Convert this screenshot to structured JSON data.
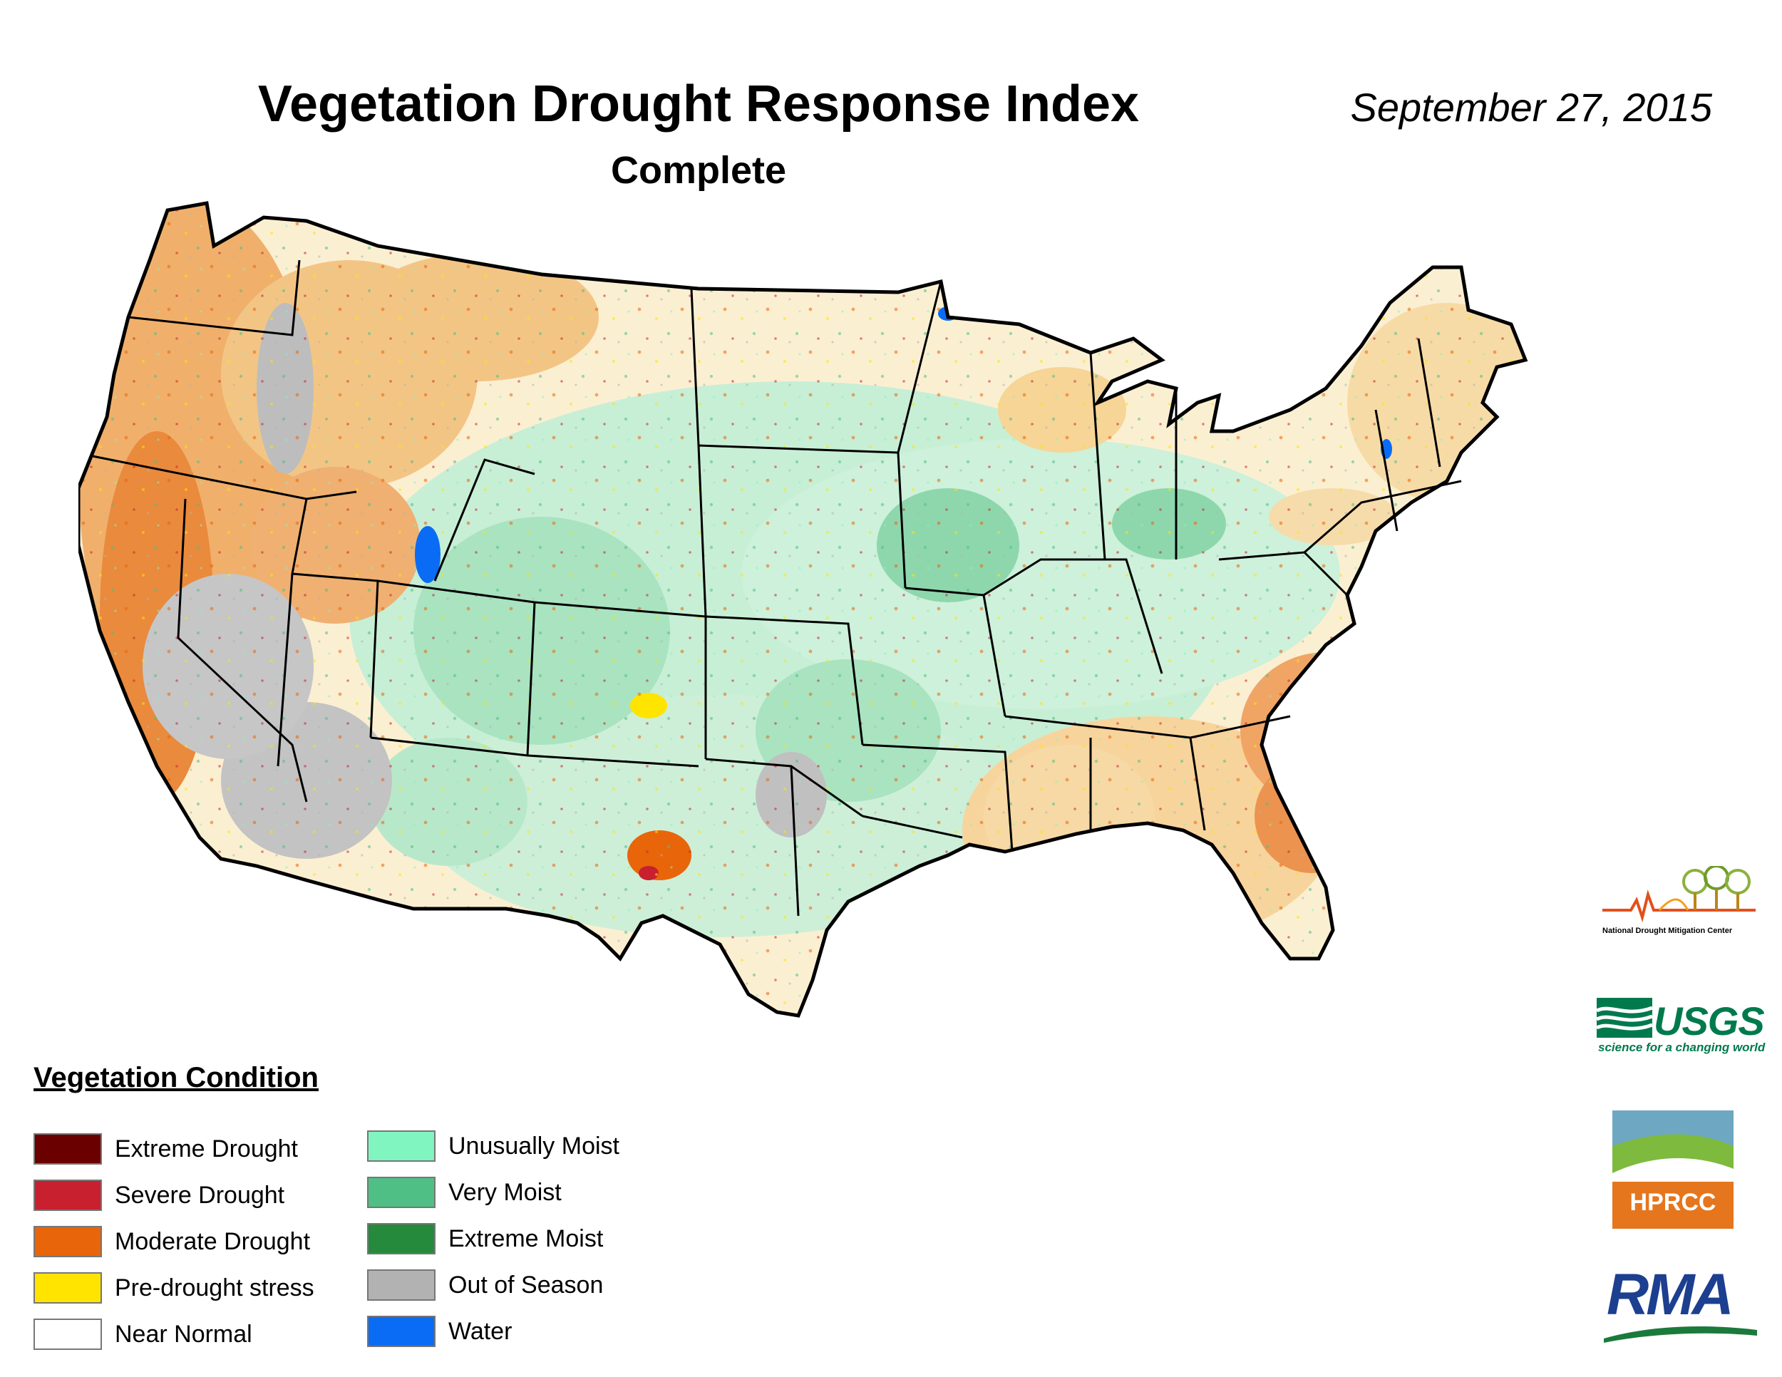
{
  "title": "Vegetation Drought Response Index",
  "subtitle": "Complete",
  "date": "September 27, 2015",
  "legend": {
    "title": "Vegetation Condition",
    "items": [
      {
        "label": "Extreme Drought",
        "color": "#6b0000"
      },
      {
        "label": "Severe Drought",
        "color": "#c8202e"
      },
      {
        "label": "Moderate Drought",
        "color": "#e8650a"
      },
      {
        "label": "Pre-drought stress",
        "color": "#ffe400"
      },
      {
        "label": "Near Normal",
        "color": "#ffffff"
      },
      {
        "label": "Unusually Moist",
        "color": "#80f5c0"
      },
      {
        "label": "Very Moist",
        "color": "#4fbf85"
      },
      {
        "label": "Extreme Moist",
        "color": "#258a3c"
      },
      {
        "label": "Out of Season",
        "color": "#b2b2b2"
      },
      {
        "label": "Water",
        "color": "#0a6cf5"
      }
    ]
  },
  "logos": {
    "ndmc": "National Drought Mitigation Center",
    "usgs": "USGS",
    "usgs_tagline": "science for a changing world",
    "hprcc": "HPRCC",
    "rma": "RMA"
  }
}
